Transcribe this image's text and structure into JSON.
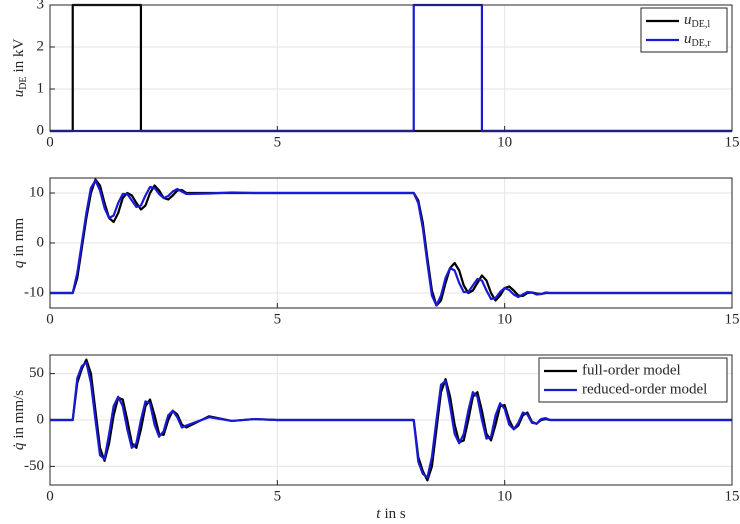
{
  "chart_data": [
    {
      "type": "line",
      "ylabel": {
        "symbol": "u",
        "subscript": "DE",
        "text": "in kV"
      },
      "x": [
        0,
        0.5,
        0.5,
        2,
        2,
        8,
        8,
        9.5,
        9.5,
        15
      ],
      "series": [
        {
          "name": "u",
          "subscript": "DE,l",
          "color": "#000000",
          "values": [
            0,
            0,
            3,
            3,
            0,
            0,
            0,
            0,
            0,
            0
          ]
        },
        {
          "name": "u",
          "subscript": "DE,r",
          "color": "#1a1ad6",
          "values": [
            0,
            0,
            0,
            0,
            0,
            0,
            3,
            3,
            0,
            0
          ]
        }
      ],
      "xlim": [
        0,
        15
      ],
      "xticks": [
        0,
        5,
        10,
        15
      ],
      "ylim": [
        0,
        3
      ],
      "yticks": [
        0,
        1,
        2,
        3
      ],
      "grid": true,
      "legend": "upper-right"
    },
    {
      "type": "line",
      "ylabel": {
        "symbol": "q",
        "text": "in mm"
      },
      "x": [
        0,
        0.5,
        0.6,
        0.7,
        0.8,
        0.9,
        1.0,
        1.1,
        1.2,
        1.3,
        1.4,
        1.5,
        1.6,
        1.7,
        1.8,
        1.9,
        2.0,
        2.1,
        2.2,
        2.3,
        2.4,
        2.5,
        2.6,
        2.7,
        2.8,
        2.9,
        3.0,
        3.5,
        4,
        4.5,
        5,
        5.5,
        6,
        6.5,
        7,
        7.5,
        8.0,
        8.1,
        8.2,
        8.3,
        8.4,
        8.5,
        8.6,
        8.7,
        8.8,
        8.9,
        9.0,
        9.1,
        9.2,
        9.3,
        9.4,
        9.5,
        9.6,
        9.7,
        9.8,
        9.9,
        10.0,
        10.1,
        10.2,
        10.3,
        10.4,
        10.5,
        10.6,
        10.7,
        10.8,
        10.9,
        11.0,
        11.5,
        12,
        12.5,
        13,
        13.5,
        14,
        14.5,
        15
      ],
      "series": [
        {
          "color": "#000000",
          "values": [
            -10,
            -10,
            -7,
            -1,
            5,
            10,
            12.7,
            11.5,
            8,
            5,
            4.2,
            6,
            9,
            10,
            9.5,
            8,
            6.7,
            7.5,
            10,
            11.5,
            10.5,
            9,
            8.7,
            9.5,
            10.5,
            10.6,
            10,
            10,
            10,
            10,
            10,
            10,
            10,
            10,
            10,
            10,
            10,
            8.5,
            4,
            -3,
            -9.5,
            -12.5,
            -11.5,
            -8,
            -5,
            -4,
            -5.5,
            -8.5,
            -10,
            -9.5,
            -8,
            -6.5,
            -7.5,
            -10,
            -11.5,
            -10.5,
            -9,
            -8.7,
            -9.5,
            -10.5,
            -10.6,
            -10,
            -9.9,
            -10.1,
            -10.2,
            -10,
            -10,
            -10,
            -10,
            -10,
            -10,
            -10,
            -10,
            -10,
            -10
          ]
        },
        {
          "color": "#1a1ad6",
          "values": [
            -10,
            -10,
            -6,
            0,
            6,
            11,
            12.5,
            10.5,
            7,
            5,
            5.5,
            8,
            9.8,
            9.8,
            8.5,
            7.2,
            7.5,
            9.5,
            11.2,
            11,
            9.8,
            9,
            9.4,
            10.3,
            10.8,
            10.3,
            9.8,
            9.9,
            10.1,
            10,
            10,
            10,
            10,
            10,
            10,
            10,
            10,
            8,
            3,
            -4,
            -10.5,
            -12.5,
            -10.5,
            -7,
            -5,
            -5.5,
            -8,
            -9.8,
            -9.8,
            -8.5,
            -7.2,
            -7.5,
            -9.5,
            -11.2,
            -11,
            -9.8,
            -9,
            -9.4,
            -10.3,
            -10.8,
            -10.3,
            -9.8,
            -9.9,
            -10.3,
            -10.2,
            -9.9,
            -10,
            -10,
            -10,
            -10,
            -10,
            -10,
            -10,
            -10,
            -10
          ]
        }
      ],
      "xlim": [
        0,
        15
      ],
      "xticks": [
        0,
        5,
        10,
        15
      ],
      "ylim": [
        -13,
        13
      ],
      "yticks": [
        -10,
        0,
        10
      ],
      "grid": true
    },
    {
      "type": "line",
      "ylabel": {
        "symbol": "q̇",
        "text": "in mm/s"
      },
      "xlabel": {
        "symbol": "t",
        "text": "in s"
      },
      "x": [
        0,
        0.5,
        0.6,
        0.7,
        0.8,
        0.9,
        1.0,
        1.1,
        1.2,
        1.3,
        1.4,
        1.5,
        1.6,
        1.7,
        1.8,
        1.9,
        2.0,
        2.1,
        2.2,
        2.3,
        2.4,
        2.5,
        2.6,
        2.7,
        2.8,
        2.9,
        3.0,
        3.5,
        4,
        4.5,
        5,
        5.5,
        6,
        6.5,
        7,
        7.5,
        8.0,
        8.1,
        8.2,
        8.3,
        8.4,
        8.5,
        8.6,
        8.7,
        8.8,
        8.9,
        9.0,
        9.1,
        9.2,
        9.3,
        9.4,
        9.5,
        9.6,
        9.7,
        9.8,
        9.9,
        10.0,
        10.1,
        10.2,
        10.3,
        10.4,
        10.5,
        10.6,
        10.7,
        10.8,
        10.9,
        11.0,
        11.5,
        12,
        12.5,
        13,
        13.5,
        14,
        14.5,
        15
      ],
      "series": [
        {
          "name": "full-order model",
          "color": "#000000",
          "values": [
            0,
            0,
            40,
            55,
            65,
            50,
            10,
            -30,
            -44,
            -25,
            5,
            24,
            22,
            0,
            -25,
            -30,
            -10,
            15,
            22,
            5,
            -15,
            -16,
            0,
            10,
            6,
            -5,
            -8,
            4,
            -1,
            1,
            0,
            0,
            0,
            0,
            0,
            0,
            0,
            -40,
            -55,
            -65,
            -50,
            -10,
            30,
            44,
            25,
            -5,
            -24,
            -22,
            0,
            25,
            30,
            10,
            -15,
            -22,
            -5,
            15,
            16,
            0,
            -10,
            -6,
            5,
            8,
            -2,
            -4,
            0,
            1,
            0,
            0,
            0,
            0,
            0,
            0,
            0,
            0,
            0
          ]
        },
        {
          "name": "reduced-order model",
          "color": "#1a1ad6",
          "values": [
            0,
            0,
            45,
            58,
            62,
            40,
            0,
            -38,
            -42,
            -15,
            15,
            25,
            15,
            -10,
            -30,
            -25,
            0,
            20,
            18,
            -5,
            -18,
            -12,
            5,
            10,
            3,
            -8,
            -6,
            3,
            -1,
            1,
            0,
            0,
            0,
            0,
            0,
            0,
            0,
            -45,
            -58,
            -62,
            -40,
            0,
            38,
            42,
            15,
            -15,
            -25,
            -15,
            10,
            30,
            25,
            0,
            -20,
            -18,
            5,
            18,
            12,
            -5,
            -10,
            -3,
            8,
            6,
            -3,
            -4,
            1,
            2,
            0,
            0,
            0,
            0,
            0,
            0,
            0,
            0,
            0
          ]
        }
      ],
      "xlim": [
        0,
        15
      ],
      "xticks": [
        0,
        5,
        10,
        15
      ],
      "ylim": [
        -70,
        70
      ],
      "yticks": [
        -50,
        0,
        50
      ],
      "grid": true,
      "legend": "upper-right"
    }
  ]
}
